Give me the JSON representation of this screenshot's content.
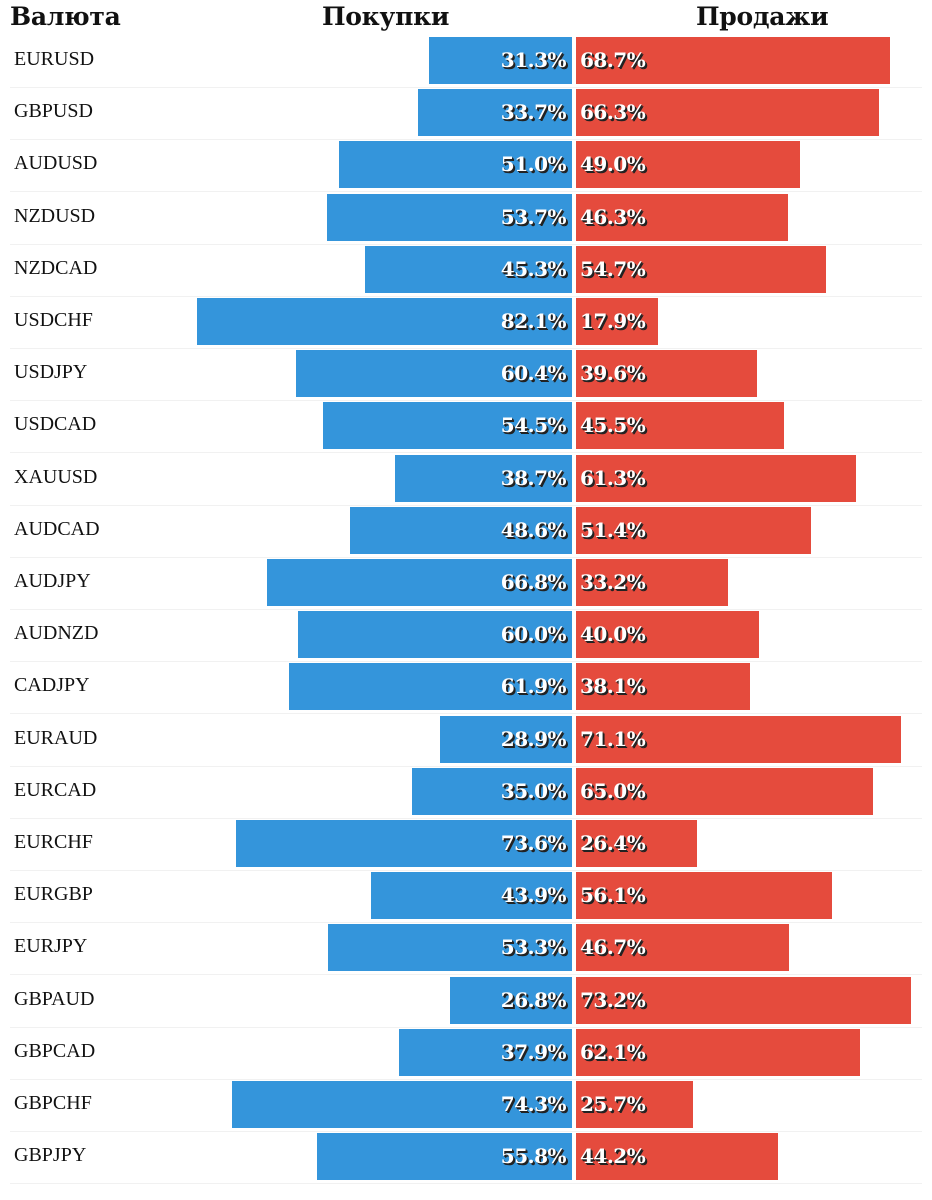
{
  "header": {
    "currency": "Валюта",
    "buy": "Покупки",
    "sell": "Продажи"
  },
  "colors": {
    "buy": "#3495db",
    "sell": "#e54b3d"
  },
  "chart_data": {
    "type": "bar",
    "orientation": "horizontal-diverging",
    "title": "",
    "columns": [
      "Валюта",
      "Покупки",
      "Продажи"
    ],
    "unit": "%",
    "categories": [
      "EURUSD",
      "GBPUSD",
      "AUDUSD",
      "NZDUSD",
      "NZDCAD",
      "USDCHF",
      "USDJPY",
      "USDCAD",
      "XAUUSD",
      "AUDCAD",
      "AUDJPY",
      "AUDNZD",
      "CADJPY",
      "EURAUD",
      "EURCAD",
      "EURCHF",
      "EURGBP",
      "EURJPY",
      "GBPAUD",
      "GBPCAD",
      "GBPCHF",
      "GBPJPY"
    ],
    "series": [
      {
        "name": "Покупки",
        "values": [
          31.3,
          33.7,
          51.0,
          53.7,
          45.3,
          82.1,
          60.4,
          54.5,
          38.7,
          48.6,
          66.8,
          60.0,
          61.9,
          28.9,
          35.0,
          73.6,
          43.9,
          53.3,
          26.8,
          37.9,
          74.3,
          55.8
        ]
      },
      {
        "name": "Продажи",
        "values": [
          68.7,
          66.3,
          49.0,
          46.3,
          54.7,
          17.9,
          39.6,
          45.5,
          61.3,
          51.4,
          33.2,
          40.0,
          38.1,
          71.1,
          65.0,
          26.4,
          56.1,
          46.7,
          73.2,
          62.1,
          25.7,
          44.2
        ]
      }
    ],
    "labels_buy": [
      "31.3%",
      "33.7%",
      "51.0%",
      "53.7%",
      "45.3%",
      "82.1%",
      "60.4%",
      "54.5%",
      "38.7%",
      "48.6%",
      "66.8%",
      "60.0%",
      "61.9%",
      "28.9%",
      "35.0%",
      "73.6%",
      "43.9%",
      "53.3%",
      "26.8%",
      "37.9%",
      "74.3%",
      "55.8%"
    ],
    "labels_sell": [
      "68.7%",
      "66.3%",
      "49.0%",
      "46.3%",
      "54.7%",
      "17.9%",
      "39.6%",
      "45.5%",
      "61.3%",
      "51.4%",
      "33.2%",
      "40.0%",
      "38.1%",
      "71.1%",
      "65.0%",
      "26.4%",
      "56.1%",
      "46.7%",
      "73.2%",
      "62.1%",
      "25.7%",
      "44.2%"
    ],
    "xlim": [
      0,
      100
    ],
    "grid": false,
    "legend": "none"
  }
}
